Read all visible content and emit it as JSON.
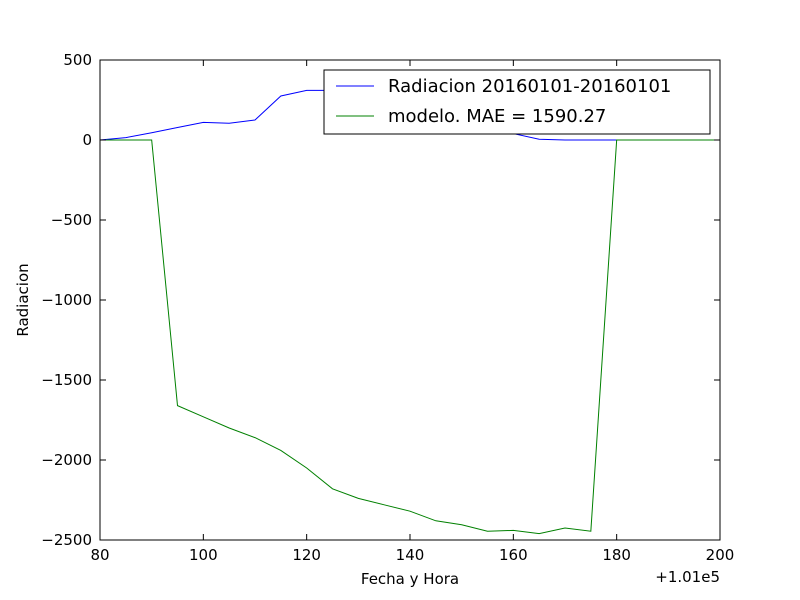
{
  "chart_data": {
    "type": "line",
    "xlabel": "Fecha y Hora",
    "ylabel": "Radiacion",
    "x_offset_label": "+1.01e5",
    "xlim": [
      80,
      200
    ],
    "ylim": [
      -2500,
      500
    ],
    "x_ticks": [
      80,
      100,
      120,
      140,
      160,
      180,
      200
    ],
    "y_ticks": [
      500,
      0,
      -500,
      -1000,
      -1500,
      -2000,
      -2500
    ],
    "x_tick_labels": [
      "80",
      "100",
      "120",
      "140",
      "160",
      "180",
      "200"
    ],
    "y_tick_labels": [
      "500",
      "0",
      "−500",
      "−1000",
      "−1500",
      "−2000",
      "−2500"
    ],
    "grid": false,
    "legend_position": "top-right",
    "series": [
      {
        "name": "Radiacion 20160101-20160101",
        "color": "#0000ff",
        "x": [
          80,
          85,
          90,
          95,
          100,
          105,
          110,
          115,
          120,
          125,
          130,
          135,
          140,
          145,
          150,
          155,
          160,
          165,
          170,
          175,
          180,
          185,
          190,
          195,
          200
        ],
        "y": [
          0,
          15,
          45,
          78,
          110,
          105,
          125,
          275,
          310,
          310,
          310,
          310,
          310,
          310,
          300,
          200,
          40,
          5,
          0,
          0,
          0,
          0,
          0,
          0,
          0
        ]
      },
      {
        "name": "modelo. MAE = 1590.27",
        "color": "#008000",
        "x": [
          80,
          85,
          90,
          95,
          100,
          105,
          110,
          115,
          120,
          125,
          130,
          135,
          140,
          145,
          150,
          155,
          160,
          165,
          170,
          175,
          180,
          185,
          190,
          195,
          200
        ],
        "y": [
          0,
          0,
          0,
          -1660,
          -1730,
          -1800,
          -1860,
          -1940,
          -2050,
          -2180,
          -2240,
          -2280,
          -2320,
          -2380,
          -2405,
          -2445,
          -2440,
          -2460,
          -2425,
          -2445,
          0,
          0,
          0,
          0,
          0
        ]
      }
    ]
  }
}
